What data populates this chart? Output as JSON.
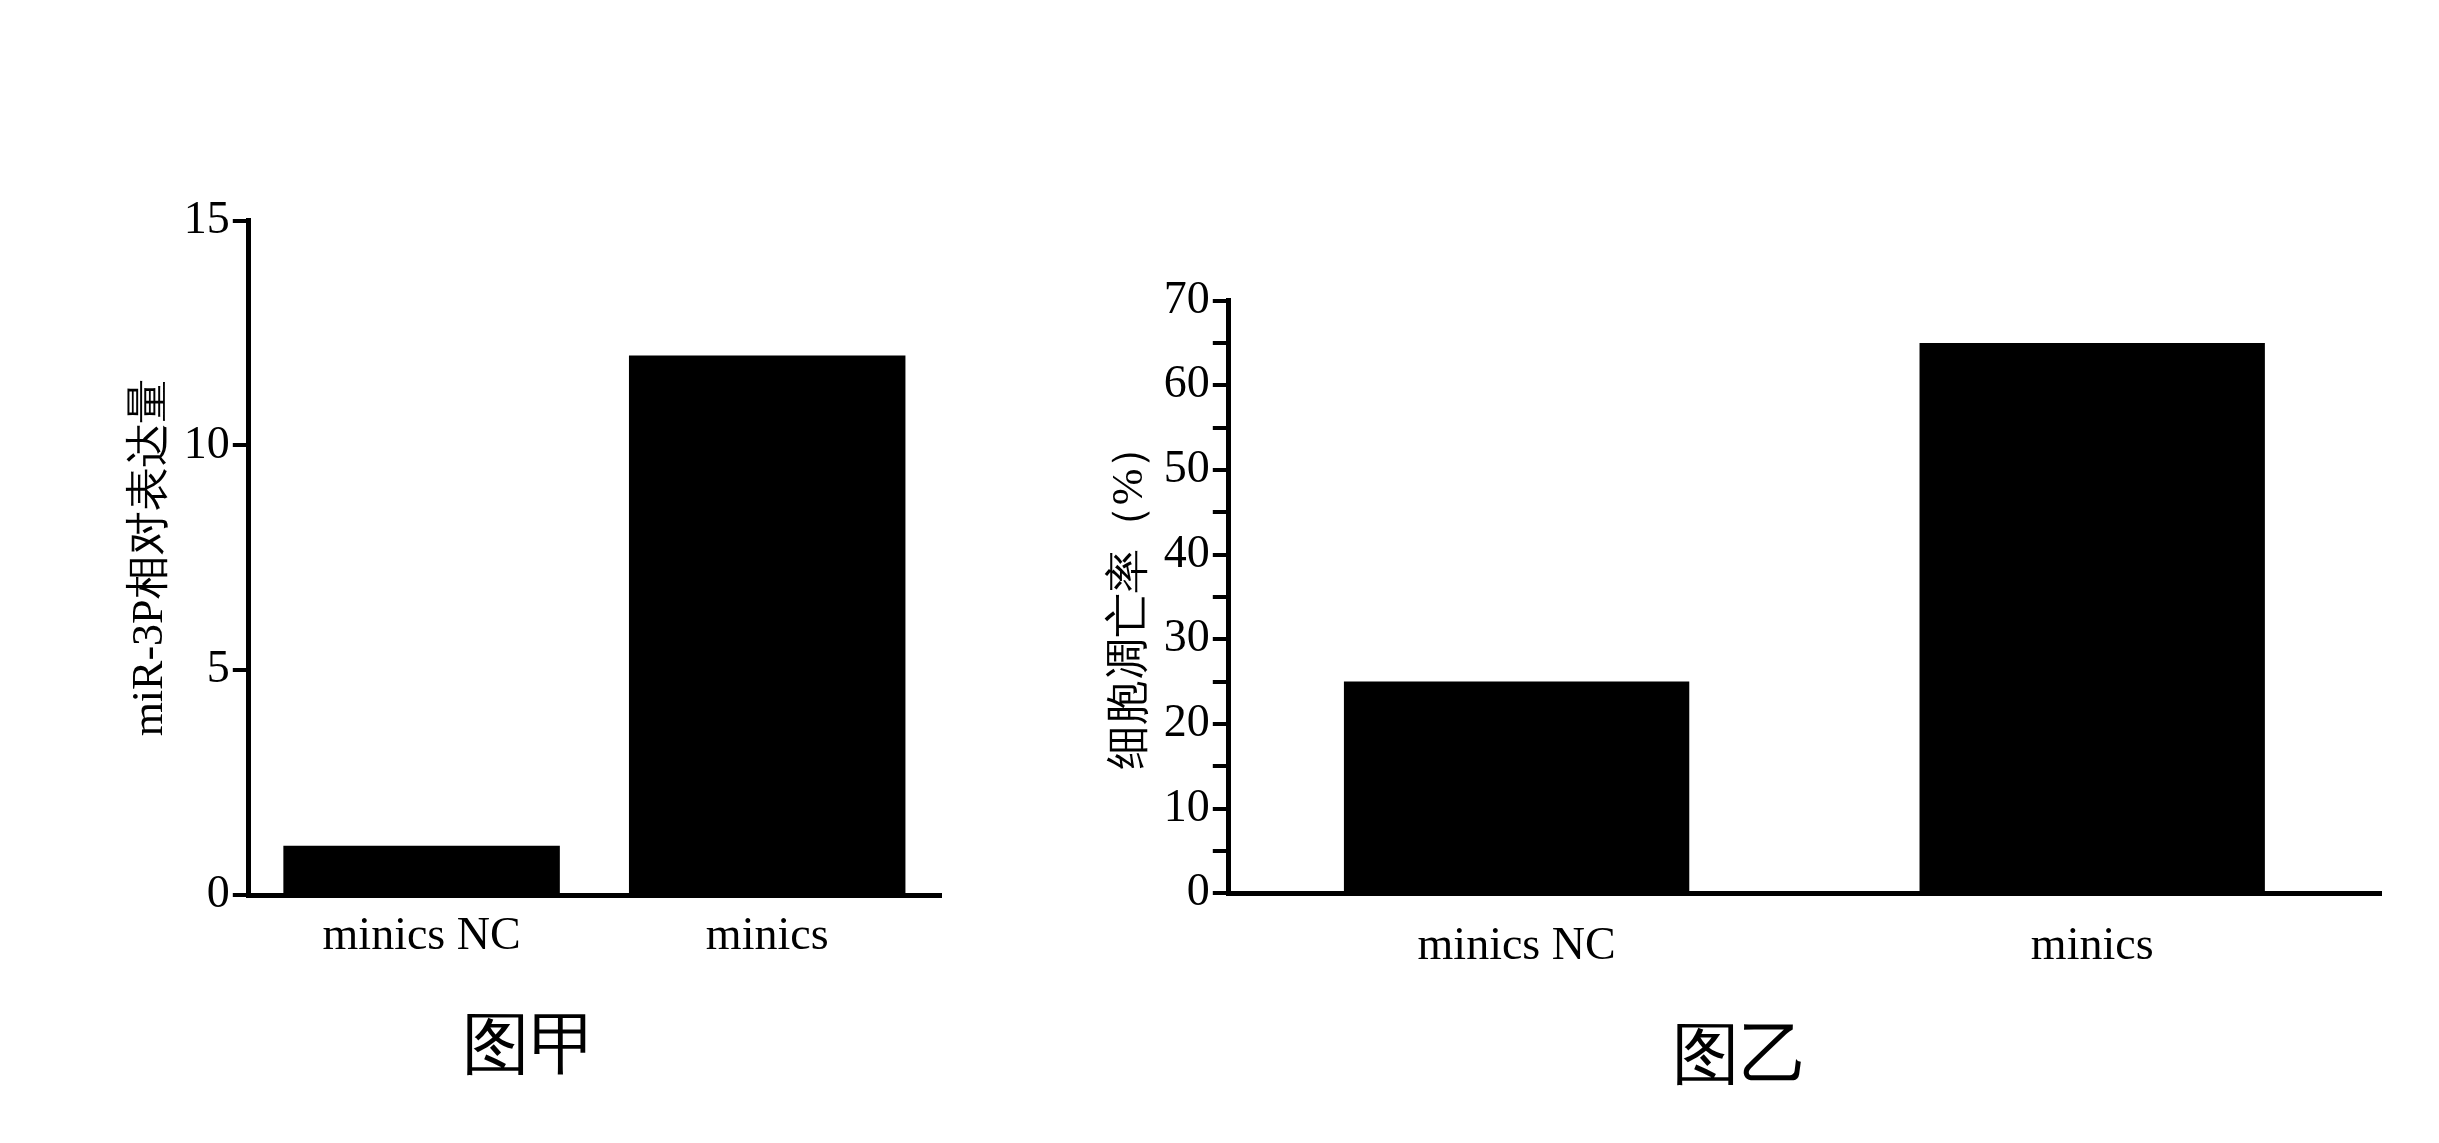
{
  "chart_data": [
    {
      "type": "bar",
      "title": "图甲",
      "ylabel": "miR-3P相对表达量",
      "categories": [
        "minics NC",
        "minics"
      ],
      "values": [
        1.1,
        12
      ],
      "color": "#000000",
      "ylim": [
        0,
        15
      ],
      "yticks": [
        0,
        5,
        10,
        15
      ],
      "grid": false,
      "legend": false
    },
    {
      "type": "bar",
      "title": "图乙",
      "ylabel": "细胞凋亡率（%）",
      "categories": [
        "minics NC",
        "minics"
      ],
      "values": [
        25,
        65
      ],
      "color": "#000000",
      "ylim": [
        0,
        70
      ],
      "yticks": [
        0,
        {
          "value": 5,
          "label": null
        },
        10,
        {
          "value": 15,
          "label": null
        },
        20,
        {
          "value": 25,
          "label": null
        },
        30,
        {
          "value": 35,
          "label": null
        },
        40,
        {
          "value": 45,
          "label": null
        },
        50,
        {
          "value": 55,
          "label": null
        },
        60,
        {
          "value": 65,
          "label": null
        },
        70
      ],
      "grid": false,
      "legend": false
    }
  ]
}
